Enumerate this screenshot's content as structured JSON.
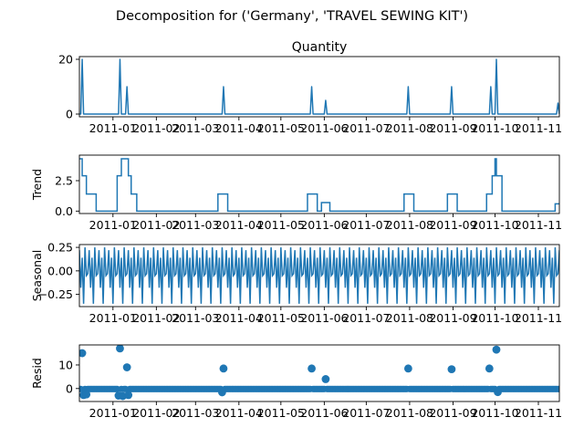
{
  "title": "Decomposition for ('Germany', 'TRAVEL SEWING KIT')",
  "x_tick_labels": [
    "2011-01",
    "2011-02",
    "2011-03",
    "2011-04",
    "2011-05",
    "2011-06",
    "2011-07",
    "2011-08",
    "2011-09",
    "2011-10",
    "2011-11"
  ],
  "colors": {
    "line": "#1f77b4",
    "axis": "#000000",
    "zero_line": "#000000"
  },
  "chart_data": [
    {
      "type": "line",
      "panel": "observed",
      "title": "Quantity",
      "ylabel": "",
      "xlim": [
        "2010-12-08",
        "2011-11-16"
      ],
      "ylim": [
        -1.0,
        21.0
      ],
      "yticks": [
        0,
        20
      ],
      "ytick_labels": [
        "0",
        "20"
      ],
      "baseline": 0,
      "x": [
        "2010-12-10",
        "2011-01-06",
        "2011-01-11",
        "2011-03-21",
        "2011-05-23",
        "2011-06-02",
        "2011-07-31",
        "2011-08-31",
        "2011-09-28",
        "2011-10-02",
        "2011-11-15"
      ],
      "y": [
        20,
        20,
        10,
        10,
        10,
        5,
        10,
        10,
        10,
        20,
        4
      ]
    },
    {
      "type": "line",
      "panel": "trend",
      "title": "",
      "ylabel": "Trend",
      "xlim": [
        "2010-12-08",
        "2011-11-16"
      ],
      "ylim": [
        -0.2,
        4.6
      ],
      "yticks": [
        0.0,
        2.5
      ],
      "ytick_labels": [
        "0.0",
        "2.5"
      ],
      "segments": [
        {
          "from": "2010-12-08",
          "to": "2010-12-10",
          "y": 4.3
        },
        {
          "from": "2010-12-10",
          "to": "2010-12-13",
          "y": 2.9
        },
        {
          "from": "2010-12-13",
          "to": "2010-12-20",
          "y": 1.4
        },
        {
          "from": "2010-12-20",
          "to": "2011-01-04",
          "y": 0.0
        },
        {
          "from": "2011-01-04",
          "to": "2011-01-07",
          "y": 2.9
        },
        {
          "from": "2011-01-07",
          "to": "2011-01-12",
          "y": 4.3
        },
        {
          "from": "2011-01-12",
          "to": "2011-01-14",
          "y": 2.9
        },
        {
          "from": "2011-01-14",
          "to": "2011-01-18",
          "y": 1.4
        },
        {
          "from": "2011-01-18",
          "to": "2011-03-17",
          "y": 0.0
        },
        {
          "from": "2011-03-17",
          "to": "2011-03-24",
          "y": 1.4
        },
        {
          "from": "2011-03-24",
          "to": "2011-05-20",
          "y": 0.0
        },
        {
          "from": "2011-05-20",
          "to": "2011-05-27",
          "y": 1.4
        },
        {
          "from": "2011-05-27",
          "to": "2011-05-30",
          "y": 0.0
        },
        {
          "from": "2011-05-30",
          "to": "2011-06-05",
          "y": 0.7
        },
        {
          "from": "2011-06-05",
          "to": "2011-07-28",
          "y": 0.0
        },
        {
          "from": "2011-07-28",
          "to": "2011-08-04",
          "y": 1.4
        },
        {
          "from": "2011-08-04",
          "to": "2011-08-28",
          "y": 0.0
        },
        {
          "from": "2011-08-28",
          "to": "2011-09-04",
          "y": 1.4
        },
        {
          "from": "2011-09-04",
          "to": "2011-09-25",
          "y": 0.0
        },
        {
          "from": "2011-09-25",
          "to": "2011-09-29",
          "y": 1.4
        },
        {
          "from": "2011-09-29",
          "to": "2011-10-01",
          "y": 2.9
        },
        {
          "from": "2011-10-01",
          "to": "2011-10-02",
          "y": 4.3
        },
        {
          "from": "2011-10-02",
          "to": "2011-10-06",
          "y": 2.9
        },
        {
          "from": "2011-10-06",
          "to": "2011-11-13",
          "y": 0.0
        },
        {
          "from": "2011-11-13",
          "to": "2011-11-16",
          "y": 0.6
        }
      ]
    },
    {
      "type": "line",
      "panel": "seasonal",
      "title": "",
      "ylabel": "Seasonal",
      "xlim": [
        "2010-12-08",
        "2011-11-16"
      ],
      "ylim": [
        -0.38,
        0.28
      ],
      "yticks": [
        0.25,
        0.0,
        -0.25
      ],
      "ytick_labels": [
        "0.25",
        "0.00",
        "−0.25"
      ],
      "period_days": 7,
      "cycle": [
        0.22,
        -0.18,
        0.14,
        -0.35,
        0.25,
        -0.05,
        -0.03
      ]
    },
    {
      "type": "scatter",
      "panel": "resid",
      "title": "",
      "ylabel": "Resid",
      "xlim": [
        "2010-12-08",
        "2011-11-16"
      ],
      "ylim": [
        -5.5,
        18.5
      ],
      "yticks": [
        0,
        10
      ],
      "ytick_labels": [
        "0",
        "10"
      ],
      "baseline": 0,
      "baseline_points": -0.2,
      "x": [
        "2010-12-10",
        "2010-12-11",
        "2010-12-13",
        "2011-01-05",
        "2011-01-06",
        "2011-01-08",
        "2011-01-11",
        "2011-01-12",
        "2011-03-20",
        "2011-03-21",
        "2011-05-23",
        "2011-06-02",
        "2011-07-31",
        "2011-08-31",
        "2011-09-27",
        "2011-10-02",
        "2011-10-03"
      ],
      "y": [
        15,
        -2.8,
        -2.5,
        -3,
        17,
        -3.2,
        9,
        -2.8,
        -1.6,
        8.5,
        8.5,
        4,
        8.5,
        8.2,
        8.5,
        16.5,
        -1.5
      ]
    }
  ]
}
